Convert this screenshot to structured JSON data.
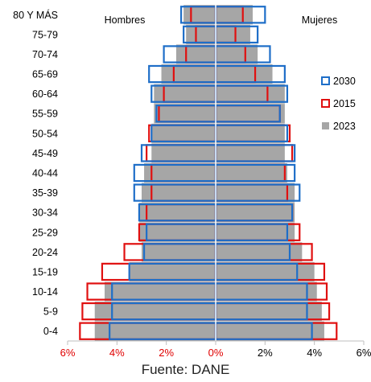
{
  "chart_data": {
    "type": "bar",
    "categories": [
      "80 Y MÁS",
      "75-79",
      "70-74",
      "65-69",
      "60-64",
      "55-59",
      "50-54",
      "45-49",
      "40-44",
      "35-39",
      "30-34",
      "25-29",
      "20-24",
      "15-19",
      "10-14",
      "5-9",
      "0-4"
    ],
    "panel_labels": {
      "left": "Hombres",
      "right": "Mujeres"
    },
    "xlim": [
      -6,
      6
    ],
    "xticks": [
      {
        "value": -6,
        "label": "6%",
        "color": "#e00000"
      },
      {
        "value": -4,
        "label": "4%",
        "color": "#e00000"
      },
      {
        "value": -2,
        "label": "2%",
        "color": "#e00000"
      },
      {
        "value": 0,
        "label": "0%",
        "color": "#e00000"
      },
      {
        "value": 2,
        "label": "2%",
        "color": "#000000"
      },
      {
        "value": 4,
        "label": "4%",
        "color": "#000000"
      },
      {
        "value": 6,
        "label": "6%",
        "color": "#000000"
      }
    ],
    "series": [
      {
        "name": "2023",
        "style": "fill",
        "color": "#a6a6a6",
        "hombres": [
          1.3,
          1.2,
          1.6,
          2.2,
          2.5,
          2.5,
          2.6,
          2.6,
          2.9,
          3.0,
          3.1,
          3.1,
          3.0,
          3.5,
          4.5,
          4.9,
          4.9
        ],
        "mujeres": [
          1.5,
          1.4,
          1.7,
          2.3,
          2.8,
          2.8,
          2.8,
          2.8,
          2.9,
          3.2,
          3.2,
          3.2,
          3.5,
          4.0,
          4.1,
          4.3,
          4.4
        ]
      },
      {
        "name": "2015",
        "style": "outline",
        "color": "#e01010",
        "hombres": [
          1.0,
          0.8,
          1.2,
          1.7,
          2.1,
          2.3,
          2.7,
          2.8,
          2.6,
          2.6,
          2.8,
          3.1,
          3.7,
          4.6,
          5.2,
          5.4,
          5.5
        ],
        "mujeres": [
          1.1,
          0.8,
          1.2,
          1.6,
          2.1,
          2.6,
          3.0,
          3.1,
          2.8,
          2.9,
          3.1,
          3.4,
          3.9,
          4.4,
          4.5,
          4.6,
          4.9
        ]
      },
      {
        "name": "2030",
        "style": "outline",
        "color": "#1e6ec8",
        "hombres": [
          1.4,
          1.3,
          2.1,
          2.7,
          2.6,
          2.4,
          2.6,
          3.0,
          3.3,
          3.3,
          3.1,
          2.8,
          2.9,
          3.5,
          4.2,
          4.2,
          4.3
        ],
        "mujeres": [
          2.0,
          1.7,
          2.2,
          2.8,
          2.9,
          2.6,
          2.9,
          3.2,
          3.2,
          3.4,
          3.1,
          2.9,
          3.0,
          3.3,
          3.7,
          3.7,
          3.9
        ]
      }
    ],
    "legend": {
      "position": "right",
      "order": [
        "2030",
        "2015",
        "2023"
      ]
    },
    "grid": false
  },
  "source_label": "Fuente: DANE"
}
